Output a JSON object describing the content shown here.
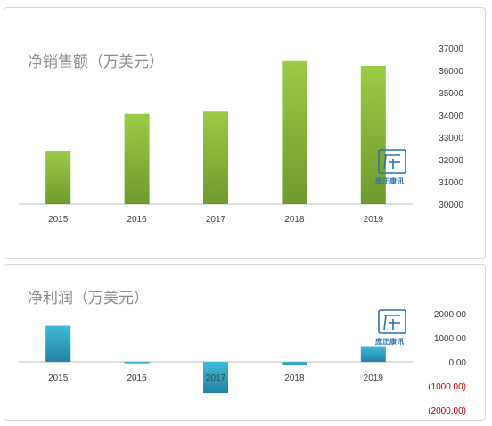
{
  "chart_data": [
    {
      "type": "bar",
      "title": "净销售额（万美元）",
      "categories": [
        "2015",
        "2016",
        "2017",
        "2018",
        "2019"
      ],
      "values": [
        32400,
        34050,
        34150,
        36450,
        36200
      ],
      "ylim": [
        30000,
        37000
      ],
      "yticks": [
        "37000",
        "36000",
        "35000",
        "34000",
        "33000",
        "32000",
        "31000",
        "30000"
      ],
      "ytick_values": [
        37000,
        36000,
        35000,
        34000,
        33000,
        32000,
        31000,
        30000
      ],
      "color": "#8cbd3f",
      "grid": false
    },
    {
      "type": "bar",
      "title": "净利润（万美元）",
      "categories": [
        "2015",
        "2016",
        "2017",
        "2018",
        "2019"
      ],
      "values": [
        1500,
        -50,
        -1300,
        -150,
        650
      ],
      "ylim": [
        -2000,
        2000
      ],
      "yticks": [
        "2000.00",
        "1000.00",
        "0.00",
        "(1000.00)",
        "(2000.00)"
      ],
      "ytick_values": [
        2000,
        1000,
        0,
        -1000,
        -2000
      ],
      "color": "#31a9c9",
      "grid": false
    }
  ],
  "watermark": {
    "text": "庞正康讯"
  }
}
